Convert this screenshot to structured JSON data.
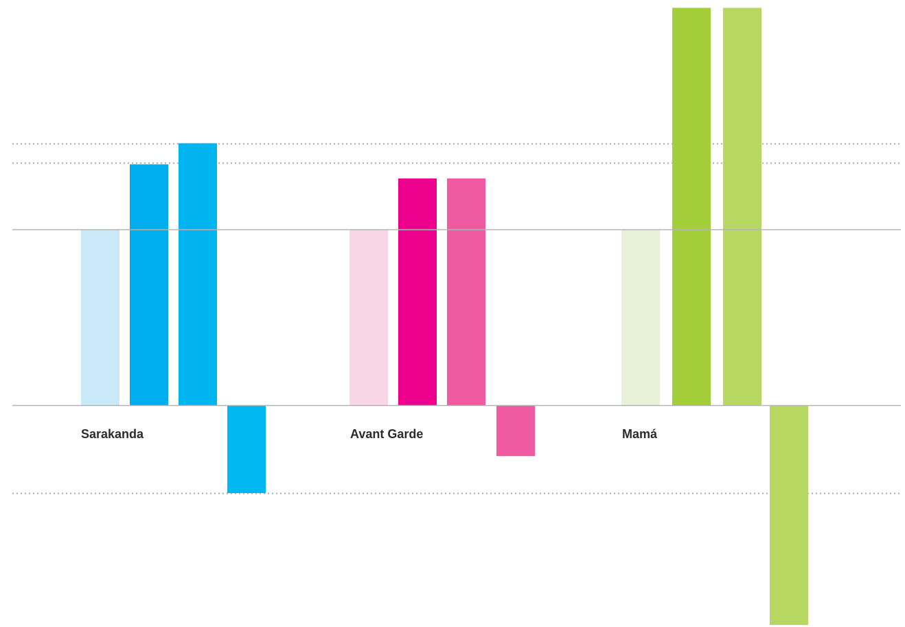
{
  "chart_data": {
    "type": "bar",
    "title": "",
    "xlabel": "",
    "ylabel": "",
    "grid": false,
    "categories": [
      "Sarakanda",
      "Avant Garde",
      "Mamá"
    ],
    "ylim": [
      -1.26,
      2.27
    ],
    "series": [
      {
        "values": [
          1.0,
          1.0,
          1.0
        ],
        "colors": [
          "#c9e9f8",
          "#f9d6e6",
          "#e8f2d8"
        ]
      },
      {
        "values": [
          1.37,
          1.29,
          2.26
        ],
        "colors": [
          "#00aeef",
          "#ec008c",
          "#a3cd39"
        ]
      },
      {
        "values": [
          1.49,
          1.29,
          2.26
        ],
        "colors": [
          "#00b4ef",
          "#f05aa1",
          "#b6d761"
        ]
      },
      {
        "values": [
          -0.5,
          -0.29,
          -1.25
        ],
        "colors": [
          "#00b7f0",
          "#f05aa1",
          "#b6d761"
        ]
      }
    ],
    "reference_lines": {
      "solid": [
        0,
        1
      ],
      "dotted": [
        1.38,
        1.49,
        -0.5
      ]
    },
    "colors": {
      "solid_line": "#b3b3b3",
      "dotted_line": "#a8a8a8",
      "label": "#2b2b2b"
    }
  }
}
